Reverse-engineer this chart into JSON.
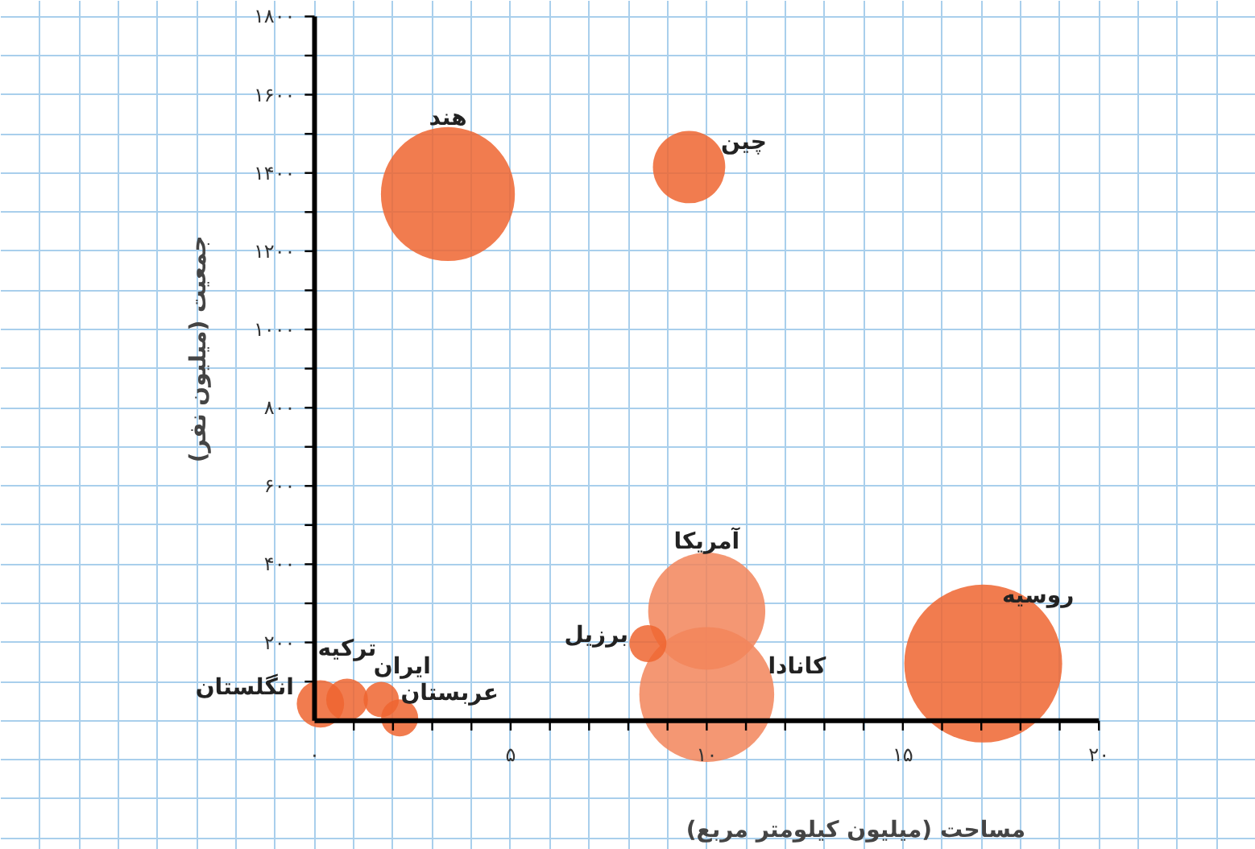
{
  "chart_data": {
    "type": "bubble",
    "xlabel": "مساحت (میلیون کیلومتر مربع)",
    "ylabel": "جمعیت (میلیون نفر)",
    "x": [
      3.4,
      9.55,
      17.05,
      10.0,
      10.0,
      8.5,
      0.15,
      0.83,
      1.7,
      2.17
    ],
    "values": [
      1346,
      1415,
      146,
      280,
      67,
      197,
      43,
      54,
      54,
      7
    ],
    "sizes": [
      0.72,
      0.21,
      1,
      0.55,
      0.73,
      0.055,
      0.09,
      0.07,
      0.05,
      0.055
    ],
    "colors": [
      "#ef6530",
      "#ef6530",
      "#ef6530",
      "#f2855a",
      "#f2855a",
      "#ef6530",
      "#ef6530",
      "#ef6530",
      "#ef6530",
      "#ef6530"
    ],
    "annotations": [
      {
        "text": "هند",
        "x": 3.4,
        "y": 1346
      },
      {
        "text": "چین",
        "x": 9.55,
        "y": 1415
      },
      {
        "text": "روسیه",
        "x": 17.05,
        "y": 146
      },
      {
        "text": "آمریکا",
        "x": 10.0,
        "y": 280
      },
      {
        "text": "کانادا",
        "x": 10.0,
        "y": 67
      },
      {
        "text": "برزیل",
        "x": 8.5,
        "y": 197
      },
      {
        "text": "انگلستان",
        "x": 0.15,
        "y": 43
      },
      {
        "text": "ترکیه",
        "x": 0.83,
        "y": 54
      },
      {
        "text": "ایران",
        "x": 1.7,
        "y": 54
      },
      {
        "text": "عربستان",
        "x": 2.17,
        "y": 7
      }
    ],
    "xlim": [
      -8,
      24
    ],
    "ylim": [
      -330,
      1840
    ],
    "xticks": [
      {
        "value": 0,
        "label": "۰"
      },
      {
        "value": 5,
        "label": "۵"
      },
      {
        "value": 10,
        "label": "۱۰"
      },
      {
        "value": 15,
        "label": "۱۵"
      },
      {
        "value": 20,
        "label": "۲۰"
      }
    ],
    "yticks": [
      {
        "value": 200,
        "label": "۲۰۰"
      },
      {
        "value": 400,
        "label": "۴۰۰"
      },
      {
        "value": 600,
        "label": "۶۰۰"
      },
      {
        "value": 800,
        "label": "۸۰۰"
      },
      {
        "value": 1000,
        "label": "۱۰۰۰"
      },
      {
        "value": 1200,
        "label": "۱۲۰۰"
      },
      {
        "value": 1400,
        "label": "۱۴۰۰"
      },
      {
        "value": 1600,
        "label": "۱۶۰۰"
      },
      {
        "value": 1800,
        "label": "۱۸۰۰"
      }
    ],
    "grid": true
  }
}
